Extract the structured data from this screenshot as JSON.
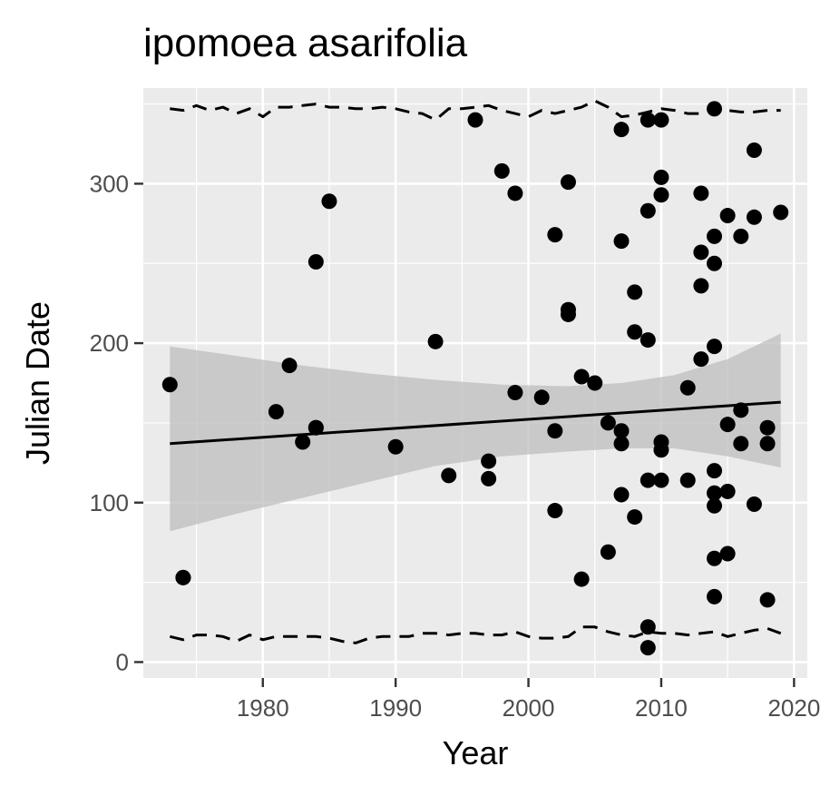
{
  "chart_data": {
    "type": "scatter",
    "title": "ipomoea asarifolia",
    "xlabel": "Year",
    "ylabel": "Julian Date",
    "xlim": [
      1971,
      2021
    ],
    "ylim": [
      -10,
      360
    ],
    "x_ticks": [
      1980,
      1990,
      2000,
      2010,
      2020
    ],
    "y_ticks": [
      0,
      100,
      200,
      300
    ],
    "grid": true,
    "legend": "none",
    "colors": {
      "panel": "#ebebeb",
      "grid": "#ffffff",
      "points": "#000000",
      "ribbon": "#bebebe",
      "trend": "#000000",
      "tick_text": "#4d4d4d"
    },
    "points": [
      [
        1973,
        174
      ],
      [
        1974,
        53
      ],
      [
        1974,
        53
      ],
      [
        1981,
        157
      ],
      [
        1982,
        186
      ],
      [
        1983,
        138
      ],
      [
        1984,
        251
      ],
      [
        1984,
        147
      ],
      [
        1984,
        147
      ],
      [
        1985,
        289
      ],
      [
        1990,
        135
      ],
      [
        1993,
        201
      ],
      [
        1994,
        117
      ],
      [
        1996,
        340
      ],
      [
        1997,
        126
      ],
      [
        1997,
        115
      ],
      [
        1998,
        308
      ],
      [
        1999,
        294
      ],
      [
        1999,
        169
      ],
      [
        2001,
        166
      ],
      [
        2002,
        268
      ],
      [
        2002,
        145
      ],
      [
        2002,
        95
      ],
      [
        2003,
        301
      ],
      [
        2003,
        221
      ],
      [
        2003,
        218
      ],
      [
        2004,
        179
      ],
      [
        2004,
        52
      ],
      [
        2005,
        175
      ],
      [
        2006,
        150
      ],
      [
        2006,
        69
      ],
      [
        2007,
        334
      ],
      [
        2007,
        264
      ],
      [
        2007,
        145
      ],
      [
        2007,
        137
      ],
      [
        2007,
        105
      ],
      [
        2008,
        232
      ],
      [
        2008,
        207
      ],
      [
        2008,
        91
      ],
      [
        2009,
        340
      ],
      [
        2009,
        283
      ],
      [
        2009,
        202
      ],
      [
        2009,
        114
      ],
      [
        2009,
        22
      ],
      [
        2009,
        9
      ],
      [
        2010,
        340
      ],
      [
        2010,
        304
      ],
      [
        2010,
        293
      ],
      [
        2010,
        138
      ],
      [
        2010,
        133
      ],
      [
        2010,
        114
      ],
      [
        2012,
        172
      ],
      [
        2012,
        114
      ],
      [
        2013,
        294
      ],
      [
        2013,
        257
      ],
      [
        2013,
        236
      ],
      [
        2013,
        190
      ],
      [
        2014,
        347
      ],
      [
        2014,
        267
      ],
      [
        2014,
        250
      ],
      [
        2014,
        198
      ],
      [
        2014,
        120
      ],
      [
        2014,
        106
      ],
      [
        2014,
        98
      ],
      [
        2014,
        65
      ],
      [
        2014,
        41
      ],
      [
        2015,
        280
      ],
      [
        2015,
        149
      ],
      [
        2015,
        107
      ],
      [
        2015,
        68
      ],
      [
        2016,
        267
      ],
      [
        2016,
        158
      ],
      [
        2016,
        137
      ],
      [
        2017,
        321
      ],
      [
        2017,
        279
      ],
      [
        2017,
        99
      ],
      [
        2018,
        147
      ],
      [
        2018,
        137
      ],
      [
        2018,
        39
      ],
      [
        2019,
        282
      ]
    ],
    "trend": {
      "x": [
        1973,
        2019
      ],
      "y": [
        137,
        163
      ]
    },
    "confidence_band": {
      "x": [
        1973,
        1978,
        1983,
        1988,
        1993,
        1998,
        2003,
        2007,
        2011,
        2015,
        2019
      ],
      "upper": [
        198,
        192,
        186,
        181,
        177,
        174,
        173,
        175,
        180,
        190,
        206
      ],
      "lower": [
        82,
        93,
        103,
        113,
        123,
        129,
        132,
        134,
        134,
        129,
        122
      ]
    },
    "upper_quantile": {
      "x": [
        1973,
        1974,
        1975,
        1976,
        1977,
        1978,
        1979,
        1980,
        1981,
        1982,
        1983,
        1984,
        1985,
        1986,
        1987,
        1988,
        1989,
        1990,
        1991,
        1992,
        1993,
        1994,
        1995,
        1996,
        1997,
        1998,
        1999,
        2000,
        2001,
        2002,
        2003,
        2004,
        2005,
        2006,
        2007,
        2008,
        2009,
        2010,
        2011,
        2012,
        2013,
        2014,
        2015,
        2016,
        2017,
        2018,
        2019
      ],
      "y": [
        347,
        346,
        349,
        346,
        348,
        344,
        347,
        342,
        348,
        348,
        349,
        350,
        348,
        348,
        347,
        347,
        348,
        347,
        345,
        344,
        340,
        347,
        347,
        348,
        349,
        346,
        344,
        342,
        346,
        344,
        346,
        348,
        352,
        348,
        342,
        343,
        345,
        347,
        346,
        344,
        344,
        348,
        346,
        345,
        345,
        346,
        346
      ]
    },
    "lower_quantile": {
      "x": [
        1973,
        1974,
        1975,
        1976,
        1977,
        1978,
        1979,
        1980,
        1981,
        1982,
        1983,
        1984,
        1985,
        1986,
        1987,
        1988,
        1989,
        1990,
        1991,
        1992,
        1993,
        1994,
        1995,
        1996,
        1997,
        1998,
        1999,
        2000,
        2001,
        2002,
        2003,
        2004,
        2005,
        2006,
        2007,
        2008,
        2009,
        2010,
        2011,
        2012,
        2013,
        2014,
        2015,
        2016,
        2017,
        2018,
        2019
      ],
      "y": [
        16,
        14,
        17,
        17,
        16,
        13,
        17,
        14,
        16,
        16,
        16,
        16,
        15,
        13,
        12,
        15,
        16,
        16,
        16,
        18,
        18,
        17,
        18,
        18,
        17,
        17,
        19,
        16,
        15,
        15,
        16,
        22,
        22,
        19,
        17,
        16,
        19,
        18,
        18,
        17,
        18,
        19,
        16,
        18,
        20,
        21,
        18
      ]
    }
  }
}
